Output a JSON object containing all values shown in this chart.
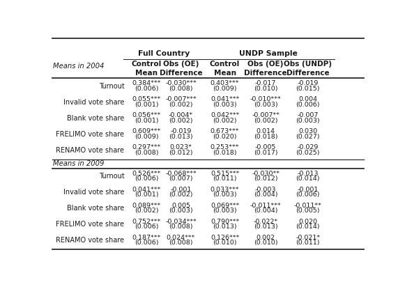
{
  "col_headers_line1": [
    "Control",
    "Obs (OE)",
    "Control",
    "Obs (OE)",
    "Obs (UNDP)"
  ],
  "col_headers_line2": [
    "Mean",
    "Difference",
    "Mean",
    "Difference",
    "Difference"
  ],
  "section1_label": "Means in 2004",
  "section2_label": "Means in 2009",
  "rows_2004": [
    {
      "label": "Turnout",
      "values": [
        "0.384***",
        "-0.030***",
        "0.403***",
        "-0.017",
        "-0.019"
      ],
      "se": [
        "(0.006)",
        "(0.008)",
        "(0.009)",
        "(0.010)",
        "(0.015)"
      ]
    },
    {
      "label": "Invalid vote share",
      "values": [
        "0.055***",
        "-0.007***",
        "0.041***",
        "-0.010***",
        "0.004"
      ],
      "se": [
        "(0.001)",
        "(0.002)",
        "(0.003)",
        "(0.003)",
        "(0.006)"
      ]
    },
    {
      "label": "Blank vote share",
      "values": [
        "0.056***",
        "-0.004*",
        "0.042***",
        "-0.007**",
        "-0.007"
      ],
      "se": [
        "(0.001)",
        "(0.002)",
        "(0.002)",
        "(0.002)",
        "(0.003)"
      ]
    },
    {
      "label": "FRELIMO vote share",
      "values": [
        "0.609***",
        "-0.019",
        "0.673***",
        "0.014",
        "0.030"
      ],
      "se": [
        "(0.009)",
        "(0.013)",
        "(0.020)",
        "(0.018)",
        "(0.027)"
      ]
    },
    {
      "label": "RENAMO vote share",
      "values": [
        "0.297***",
        "0.023*",
        "0.253***",
        "-0.005",
        "-0.029"
      ],
      "se": [
        "(0.008)",
        "(0.012)",
        "(0.018)",
        "(0.017)",
        "(0.025)"
      ]
    }
  ],
  "rows_2009": [
    {
      "label": "Turnout",
      "values": [
        "0.526***",
        "-0.068***",
        "0.515***",
        "-0.030**",
        "-0.013"
      ],
      "se": [
        "(0.006)",
        "(0.007)",
        "(0.011)",
        "(0.012)",
        "(0.014)"
      ]
    },
    {
      "label": "Invalid vote share",
      "values": [
        "0.041***",
        "-0.001",
        "0.033***",
        "-0.003",
        "-0.001"
      ],
      "se": [
        "(0.001)",
        "(0.002)",
        "(0.003)",
        "(0.004)",
        "(0.006)"
      ]
    },
    {
      "label": "Blank vote share",
      "values": [
        "0.089***",
        "0.005",
        "0.069***",
        "-0.011***",
        "-0.011**"
      ],
      "se": [
        "(0.002)",
        "(0.003)",
        "(0.003)",
        "(0.004)",
        "(0.005)"
      ]
    },
    {
      "label": "FRELIMO vote share",
      "values": [
        "0.752***",
        "-0.034***",
        "0.790***",
        "-0.022*",
        "0.020"
      ],
      "se": [
        "(0.006)",
        "(0.008)",
        "(0.013)",
        "(0.013)",
        "(0.014)"
      ]
    },
    {
      "label": "RENAMO vote share",
      "values": [
        "0.187***",
        "0.024***",
        "0.126***",
        "0.002",
        "-0.021*"
      ],
      "se": [
        "(0.006)",
        "(0.008)",
        "(0.010)",
        "(0.010)",
        "(0.011)"
      ]
    }
  ],
  "bg_color": "#ffffff",
  "text_color": "#1a1a1a",
  "line_color": "#2a2a2a",
  "fc_group": "Full Country",
  "undp_group": "UNDP Sample",
  "fs_group": 7.8,
  "fs_header": 7.5,
  "fs_cell": 6.8,
  "fs_section": 7.2,
  "fs_rowlabel": 7.0
}
